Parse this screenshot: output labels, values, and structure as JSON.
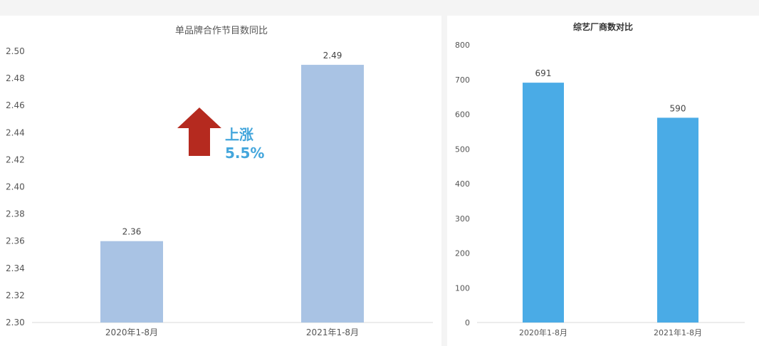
{
  "chart_data": [
    {
      "type": "bar",
      "title": "单品牌合作节目数同比",
      "categories": [
        "2020年1-8月",
        "2021年1-8月"
      ],
      "values": [
        2.36,
        2.49
      ],
      "data_labels": [
        "2.36",
        "2.49"
      ],
      "ylim": [
        2.3,
        2.5
      ],
      "yticks": [
        "2.30",
        "2.32",
        "2.34",
        "2.36",
        "2.38",
        "2.40",
        "2.42",
        "2.44",
        "2.46",
        "2.48",
        "2.50"
      ],
      "grid": false,
      "bar_color": "#a9c3e4",
      "annotation": {
        "line1": "上涨",
        "line2": "5.5%",
        "arrow_color": "#b52a1f",
        "text_color": "#44a6dc"
      }
    },
    {
      "type": "bar",
      "title": "综艺厂商数对比",
      "categories": [
        "2020年1-8月",
        "2021年1-8月"
      ],
      "values": [
        691,
        590
      ],
      "data_labels": [
        "691",
        "590"
      ],
      "ylim": [
        0,
        800
      ],
      "yticks": [
        "0",
        "100",
        "200",
        "300",
        "400",
        "500",
        "600",
        "700",
        "800"
      ],
      "grid": false,
      "bar_color": "#4aabe6"
    }
  ]
}
